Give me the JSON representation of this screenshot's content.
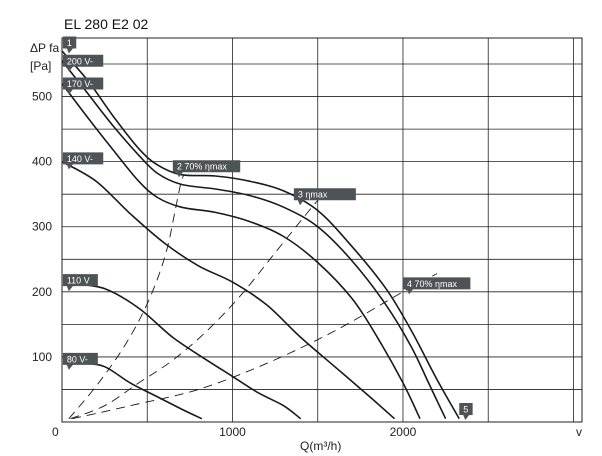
{
  "chart_data": {
    "type": "line",
    "title": "EL 280 E2 02",
    "ylabel_line1": "ΔP fa",
    "ylabel_line2": "[Pa]",
    "xlabel": "Q(m³/h)",
    "x_extra_label": "v",
    "xlim": [
      0,
      3050
    ],
    "ylim": [
      0,
      590
    ],
    "x_ticks": [
      0,
      1000,
      2000
    ],
    "y_ticks": [
      100,
      200,
      300,
      400,
      500
    ],
    "grid": true,
    "series": [
      {
        "name": "",
        "points": [
          [
            0,
            570
          ],
          [
            150,
            525
          ],
          [
            300,
            470
          ],
          [
            450,
            420
          ],
          [
            560,
            395
          ],
          [
            700,
            380
          ],
          [
            900,
            378
          ],
          [
            1100,
            370
          ],
          [
            1300,
            355
          ],
          [
            1500,
            325
          ],
          [
            1700,
            270
          ],
          [
            1900,
            205
          ],
          [
            2050,
            140
          ],
          [
            2200,
            65
          ],
          [
            2330,
            5
          ]
        ]
      },
      {
        "name": "",
        "points": [
          [
            0,
            555
          ],
          [
            150,
            505
          ],
          [
            300,
            455
          ],
          [
            450,
            410
          ],
          [
            560,
            382
          ],
          [
            700,
            365
          ],
          [
            900,
            358
          ],
          [
            1100,
            348
          ],
          [
            1300,
            330
          ],
          [
            1500,
            300
          ],
          [
            1700,
            248
          ],
          [
            1900,
            180
          ],
          [
            2050,
            115
          ],
          [
            2150,
            60
          ],
          [
            2250,
            5
          ]
        ]
      },
      {
        "name": "",
        "points": [
          [
            0,
            520
          ],
          [
            150,
            468
          ],
          [
            300,
            418
          ],
          [
            450,
            370
          ],
          [
            560,
            345
          ],
          [
            700,
            330
          ],
          [
            900,
            322
          ],
          [
            1100,
            308
          ],
          [
            1300,
            285
          ],
          [
            1500,
            245
          ],
          [
            1700,
            190
          ],
          [
            1850,
            130
          ],
          [
            2000,
            60
          ],
          [
            2100,
            5
          ]
        ]
      },
      {
        "name": "",
        "points": [
          [
            0,
            400
          ],
          [
            200,
            370
          ],
          [
            400,
            320
          ],
          [
            600,
            275
          ],
          [
            800,
            240
          ],
          [
            1000,
            215
          ],
          [
            1200,
            180
          ],
          [
            1400,
            130
          ],
          [
            1600,
            85
          ],
          [
            1800,
            40
          ],
          [
            1950,
            5
          ]
        ]
      },
      {
        "name": "",
        "points": [
          [
            70,
            212
          ],
          [
            250,
            205
          ],
          [
            450,
            175
          ],
          [
            650,
            130
          ],
          [
            850,
            95
          ],
          [
            1000,
            70
          ],
          [
            1150,
            45
          ],
          [
            1300,
            25
          ],
          [
            1400,
            5
          ]
        ]
      },
      {
        "name": "",
        "points": [
          [
            130,
            90
          ],
          [
            250,
            85
          ],
          [
            400,
            60
          ],
          [
            550,
            40
          ],
          [
            700,
            20
          ],
          [
            820,
            5
          ]
        ]
      }
    ],
    "reference_lines": [
      {
        "name": "",
        "points": [
          [
            40,
            5
          ],
          [
            200,
            55
          ],
          [
            350,
            110
          ],
          [
            470,
            165
          ],
          [
            560,
            220
          ],
          [
            620,
            270
          ],
          [
            660,
            320
          ],
          [
            700,
            370
          ],
          [
            720,
            380
          ]
        ]
      },
      {
        "name": "",
        "points": [
          [
            50,
            5
          ],
          [
            250,
            25
          ],
          [
            450,
            60
          ],
          [
            650,
            95
          ],
          [
            850,
            140
          ],
          [
            1050,
            195
          ],
          [
            1250,
            260
          ],
          [
            1450,
            325
          ],
          [
            1560,
            358
          ]
        ]
      },
      {
        "name": "",
        "points": [
          [
            60,
            5
          ],
          [
            400,
            25
          ],
          [
            800,
            50
          ],
          [
            1200,
            90
          ],
          [
            1600,
            140
          ],
          [
            2000,
            200
          ],
          [
            2200,
            228
          ]
        ]
      }
    ],
    "tags": [
      {
        "text": "1",
        "x": 5,
        "y": 583
      },
      {
        "text": "200 V-",
        "x": 5,
        "y": 555
      },
      {
        "text": "170 V-",
        "x": 5,
        "y": 520
      },
      {
        "text": "140 V-",
        "x": 5,
        "y": 405
      },
      {
        "text": "2  70% ηmax",
        "x": 650,
        "y": 393
      },
      {
        "text": "3     ηmax",
        "x": 1360,
        "y": 350
      },
      {
        "text": "110 V",
        "x": 5,
        "y": 218
      },
      {
        "text": "4  70% ηmax",
        "x": 2000,
        "y": 213
      },
      {
        "text": "80 V-",
        "x": 5,
        "y": 97
      },
      {
        "text": "5",
        "x": 2330,
        "y": 20
      }
    ]
  }
}
